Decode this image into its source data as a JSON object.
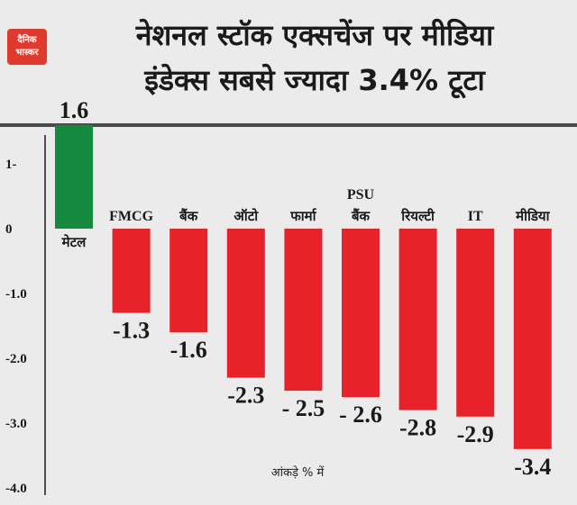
{
  "brand": {
    "logo_text_line1": "दैनिक",
    "logo_text_line2": "भास्कर",
    "logo_color": "#e03a2e"
  },
  "title": {
    "line1": "नेशनल स्टॉक एक्सचेंज पर मीडिया",
    "line2": "इंडेक्स सबसे ज्यादा 3.4% टूटा"
  },
  "footnote": "आंकड़े % में",
  "colors": {
    "positive": "#158a3e",
    "negative": "#e8222a",
    "background": "#ebebeb",
    "text": "#1a1a1a"
  },
  "chart_data": {
    "type": "bar",
    "categories": [
      "मेटल",
      "FMCG",
      "बैंक",
      "ऑटो",
      "फार्मा",
      "PSU बैंक",
      "रियल्टी",
      "IT",
      "मीडिया"
    ],
    "category_labels": [
      [
        "मेटल"
      ],
      [
        "FMCG"
      ],
      [
        "बैंक"
      ],
      [
        "ऑटो"
      ],
      [
        "फार्मा"
      ],
      [
        "PSU",
        "बैंक"
      ],
      [
        "रियल्टी"
      ],
      [
        "IT"
      ],
      [
        "मीडिया"
      ]
    ],
    "values": [
      1.6,
      -1.3,
      -1.6,
      -2.3,
      -2.5,
      -2.6,
      -2.8,
      -2.9,
      -3.4
    ],
    "value_labels": [
      "1.6",
      "-1.3",
      "-1.6",
      "-2.3",
      "- 2.5",
      "- 2.6",
      "-2.8",
      "-2.9",
      "-3.4"
    ],
    "ylim": [
      -4.0,
      1.6
    ],
    "yticks": [
      1,
      0,
      -1,
      -2,
      -3,
      -4
    ],
    "ytick_labels": [
      "1-",
      "0",
      "-1.0",
      "-2.0",
      "-3.0",
      "-4.0"
    ],
    "xlabel": "",
    "ylabel": "",
    "grid": false,
    "legend": "none"
  }
}
